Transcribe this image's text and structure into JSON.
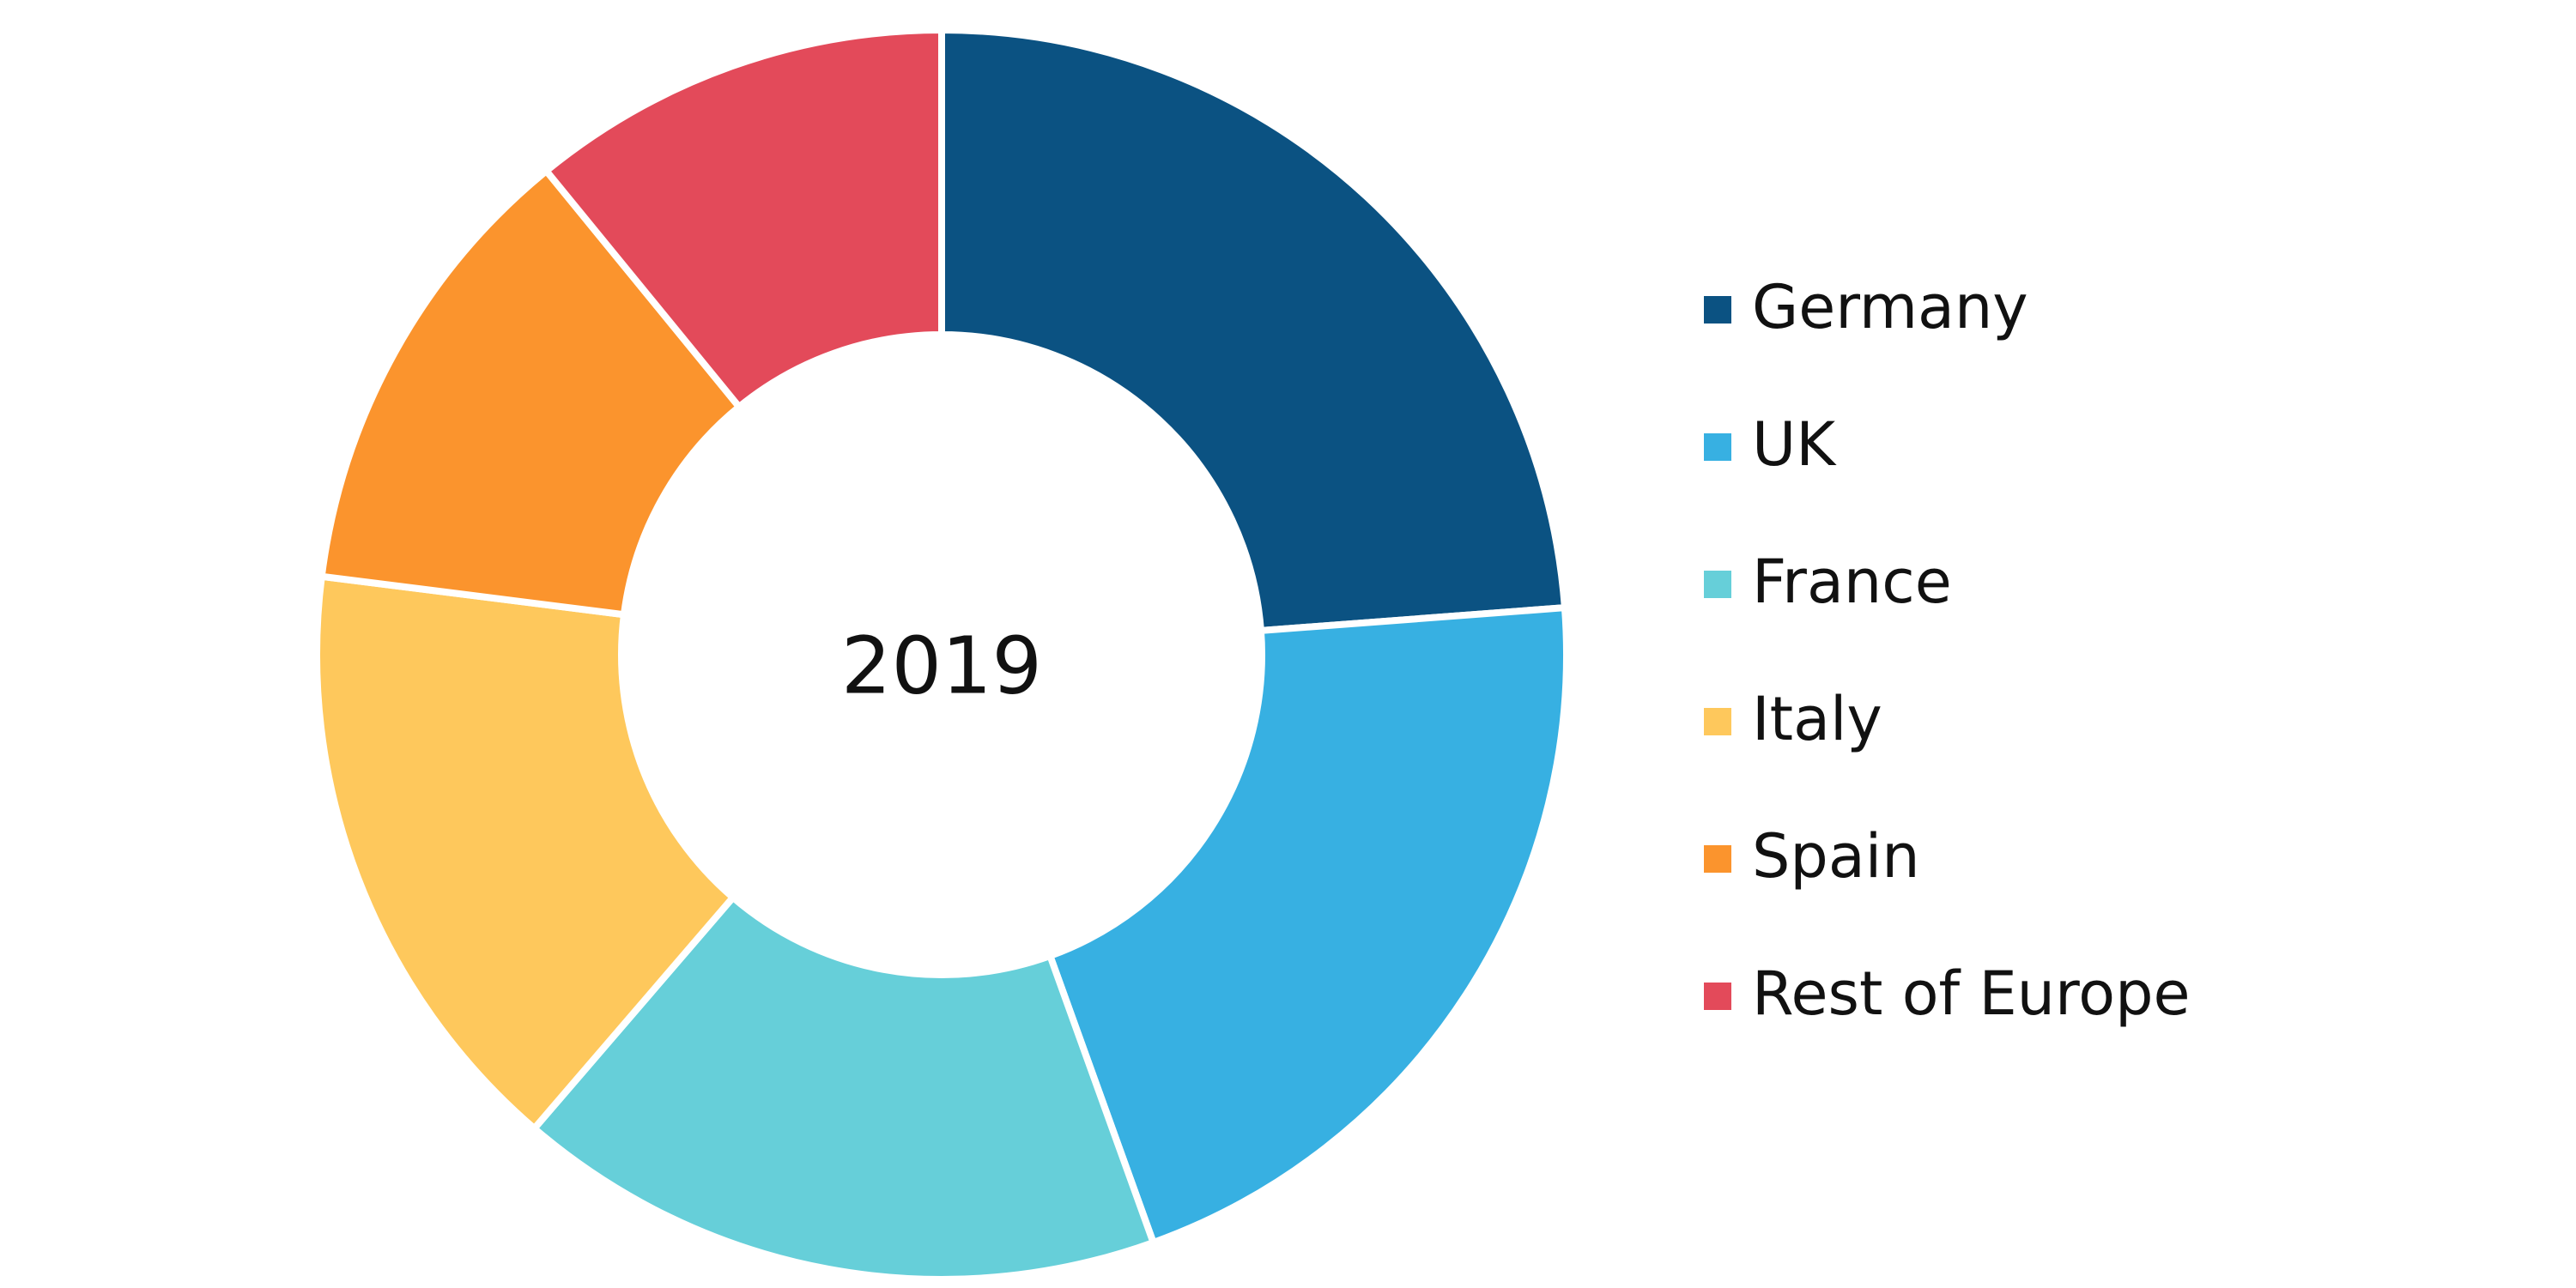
{
  "chart_data": {
    "type": "donut",
    "center_label": "2019",
    "categories": [
      "Germany",
      "UK",
      "France",
      "Italy",
      "Spain",
      "Rest of Europe"
    ],
    "values": [
      23.8,
      20.7,
      16.8,
      15.7,
      12.1,
      10.9
    ],
    "colors": [
      "#0b5282",
      "#37b0e2",
      "#66cfd9",
      "#fec85c",
      "#fb942d",
      "#e34a5a"
    ],
    "legend": "right"
  }
}
